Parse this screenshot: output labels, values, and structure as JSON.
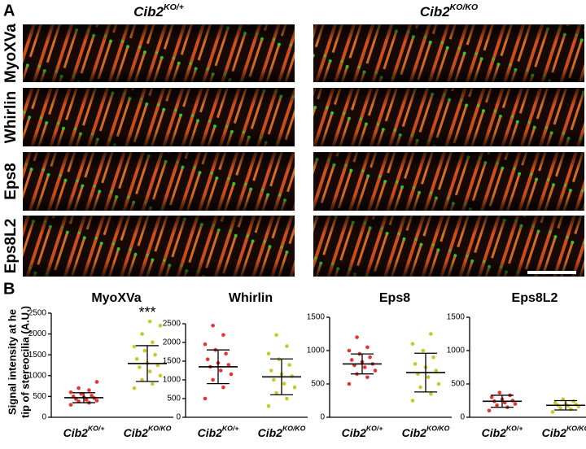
{
  "panel_a": {
    "label": "A",
    "columns": [
      {
        "base": "Cib2",
        "sup": "KO/+"
      },
      {
        "base": "Cib2",
        "sup": "KO/KO"
      }
    ],
    "rows": [
      "MyoXVa",
      "Whirlin",
      "Eps8",
      "Eps8L2"
    ]
  },
  "panel_b": {
    "label": "B",
    "ylabel": [
      "Signal intensity at he",
      "tip of stereocilia (A.U.)"
    ]
  },
  "chart_data": [
    {
      "type": "dotplot",
      "title": "MyoXVa",
      "annotation": "***",
      "ylim": [
        0,
        2500
      ],
      "yticks": [
        0,
        500,
        1000,
        1500,
        2000,
        2500
      ],
      "groups": [
        {
          "base": "Cib2",
          "sup": "KO/+",
          "color": "#e8322f",
          "mean": 470,
          "sd": 120,
          "values": [
            300,
            350,
            380,
            400,
            420,
            440,
            460,
            480,
            500,
            520,
            560,
            600,
            650,
            700,
            850
          ]
        },
        {
          "base": "Cib2",
          "sup": "KO/KO",
          "color": "#c9c829",
          "mean": 1290,
          "sd": 430,
          "values": [
            700,
            800,
            900,
            1000,
            1100,
            1200,
            1250,
            1300,
            1400,
            1500,
            1600,
            1700,
            1800,
            2000,
            2200,
            2300
          ]
        }
      ]
    },
    {
      "type": "dotplot",
      "title": "Whirlin",
      "ylim": [
        0,
        2500
      ],
      "yticks": [
        0,
        500,
        1000,
        1500,
        2000,
        2500
      ],
      "groups": [
        {
          "base": "Cib2",
          "sup": "KO/+",
          "color": "#e8322f",
          "mean": 1350,
          "sd": 450,
          "values": [
            500,
            800,
            1000,
            1150,
            1250,
            1350,
            1400,
            1450,
            1550,
            1700,
            1800,
            1950,
            2200,
            2450
          ]
        },
        {
          "base": "Cib2",
          "sup": "KO/KO",
          "color": "#c9c829",
          "mean": 1080,
          "sd": 480,
          "values": [
            300,
            500,
            650,
            800,
            900,
            1000,
            1100,
            1150,
            1250,
            1400,
            1550,
            1700,
            1900,
            2200
          ]
        }
      ]
    },
    {
      "type": "dotplot",
      "title": "Eps8",
      "ylim": [
        0,
        1500
      ],
      "yticks": [
        0,
        500,
        1000,
        1500
      ],
      "groups": [
        {
          "base": "Cib2",
          "sup": "KO/+",
          "color": "#e8322f",
          "mean": 800,
          "sd": 150,
          "values": [
            500,
            600,
            650,
            700,
            750,
            780,
            800,
            830,
            860,
            900,
            950,
            1000,
            1050,
            1200
          ]
        },
        {
          "base": "Cib2",
          "sup": "KO/KO",
          "color": "#c9c829",
          "mean": 670,
          "sd": 290,
          "values": [
            250,
            350,
            450,
            500,
            600,
            650,
            700,
            750,
            800,
            900,
            1000,
            1100,
            1250
          ]
        }
      ]
    },
    {
      "type": "dotplot",
      "title": "Eps8L2",
      "ylim": [
        0,
        1500
      ],
      "yticks": [
        0,
        500,
        1000,
        1500
      ],
      "groups": [
        {
          "base": "Cib2",
          "sup": "KO/+",
          "color": "#e8322f",
          "mean": 240,
          "sd": 90,
          "values": [
            100,
            150,
            180,
            200,
            220,
            240,
            250,
            270,
            300,
            330,
            370
          ]
        },
        {
          "base": "Cib2",
          "sup": "KO/KO",
          "color": "#c9c829",
          "mean": 180,
          "sd": 70,
          "values": [
            80,
            120,
            140,
            160,
            170,
            180,
            190,
            200,
            220,
            240,
            270
          ]
        }
      ]
    }
  ]
}
